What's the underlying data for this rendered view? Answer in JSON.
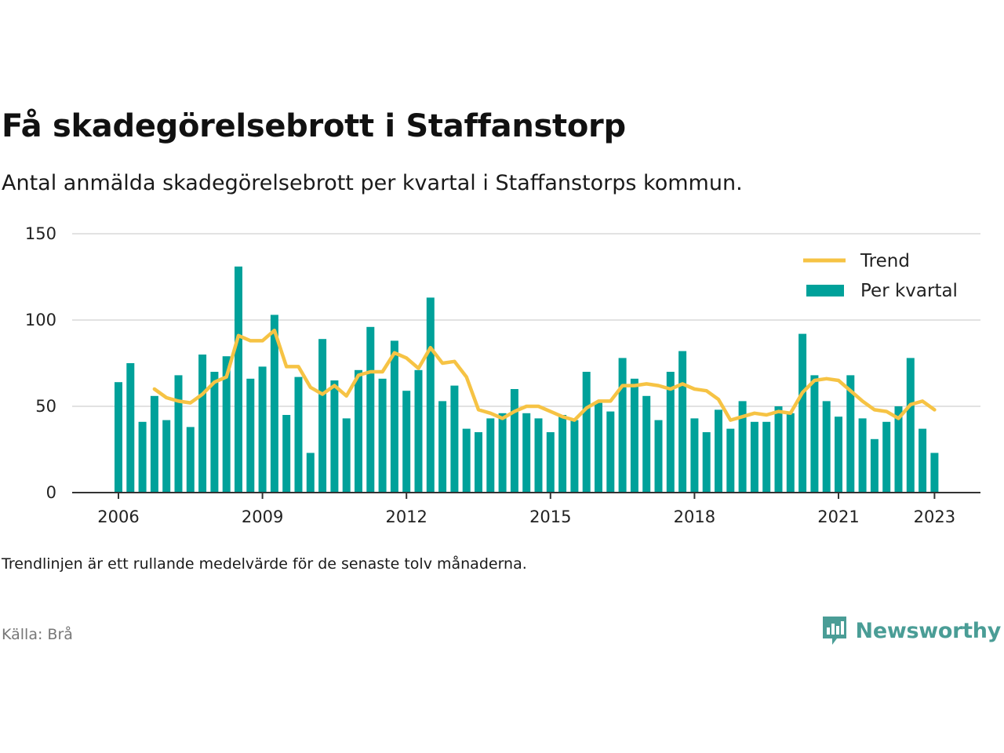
{
  "header": {
    "title": "Få skadegörelsebrott i Staffanstorp",
    "subtitle": "Antal anmälda skadegörelsebrott per kvartal i Staffanstorps kommun."
  },
  "footer": {
    "note": "Trendlinjen är ett rullande medelvärde för de senaste tolv månaderna.",
    "source": "Källa: Brå",
    "brand": "Newsworthy"
  },
  "colors": {
    "bars": "#00a19a",
    "trend": "#f6c344",
    "grid": "#d9d9d9",
    "brand": "#4a9d96"
  },
  "chart_data": {
    "type": "bar",
    "title": "Få skadegörelsebrott i Staffanstorp",
    "subtitle": "Antal anmälda skadegörelsebrott per kvartal i Staffanstorps kommun.",
    "xlabel": "",
    "ylabel": "",
    "ylim": [
      0,
      150
    ],
    "yticks": [
      0,
      50,
      100,
      150
    ],
    "xticks": [
      "2006",
      "2009",
      "2012",
      "2015",
      "2018",
      "2021",
      "2023"
    ],
    "grid": true,
    "legend_position": "top-right",
    "categories": [
      "2006 K1",
      "2006 K2",
      "2006 K3",
      "2006 K4",
      "2007 K1",
      "2007 K2",
      "2007 K3",
      "2007 K4",
      "2008 K1",
      "2008 K2",
      "2008 K3",
      "2008 K4",
      "2009 K1",
      "2009 K2",
      "2009 K3",
      "2009 K4",
      "2010 K1",
      "2010 K2",
      "2010 K3",
      "2010 K4",
      "2011 K1",
      "2011 K2",
      "2011 K3",
      "2011 K4",
      "2012 K1",
      "2012 K2",
      "2012 K3",
      "2012 K4",
      "2013 K1",
      "2013 K2",
      "2013 K3",
      "2013 K4",
      "2014 K1",
      "2014 K2",
      "2014 K3",
      "2014 K4",
      "2015 K1",
      "2015 K2",
      "2015 K3",
      "2015 K4",
      "2016 K1",
      "2016 K2",
      "2016 K3",
      "2016 K4",
      "2017 K1",
      "2017 K2",
      "2017 K3",
      "2017 K4",
      "2018 K1",
      "2018 K2",
      "2018 K3",
      "2018 K4",
      "2019 K1",
      "2019 K2",
      "2019 K3",
      "2019 K4",
      "2020 K1",
      "2020 K2",
      "2020 K3",
      "2020 K4",
      "2021 K1",
      "2021 K2",
      "2021 K3",
      "2021 K4",
      "2022 K1",
      "2022 K2",
      "2022 K3",
      "2022 K4",
      "2023 K1"
    ],
    "series": [
      {
        "name": "Per kvartal",
        "type": "bar",
        "values": [
          64,
          75,
          41,
          56,
          42,
          68,
          38,
          80,
          70,
          79,
          131,
          66,
          73,
          103,
          45,
          67,
          23,
          89,
          65,
          43,
          71,
          96,
          66,
          88,
          59,
          71,
          113,
          53,
          62,
          37,
          35,
          43,
          46,
          60,
          46,
          43,
          35,
          45,
          42,
          70,
          52,
          47,
          78,
          66,
          56,
          42,
          70,
          82,
          43,
          35,
          48,
          37,
          53,
          41,
          41,
          50,
          46,
          92,
          68,
          53,
          44,
          68,
          43,
          31,
          41,
          50,
          78,
          37,
          23
        ]
      },
      {
        "name": "Trend",
        "type": "line",
        "values": [
          null,
          null,
          null,
          60,
          55,
          53,
          52,
          57,
          64,
          67,
          91,
          88,
          88,
          94,
          73,
          73,
          61,
          57,
          62,
          56,
          68,
          70,
          70,
          81,
          78,
          72,
          84,
          75,
          76,
          67,
          48,
          46,
          43,
          47,
          50,
          50,
          47,
          44,
          42,
          49,
          53,
          53,
          62,
          62,
          63,
          62,
          60,
          63,
          60,
          59,
          54,
          42,
          44,
          46,
          45,
          47,
          46,
          58,
          65,
          66,
          65,
          59,
          53,
          48,
          47,
          43,
          51,
          53,
          48
        ]
      }
    ]
  }
}
